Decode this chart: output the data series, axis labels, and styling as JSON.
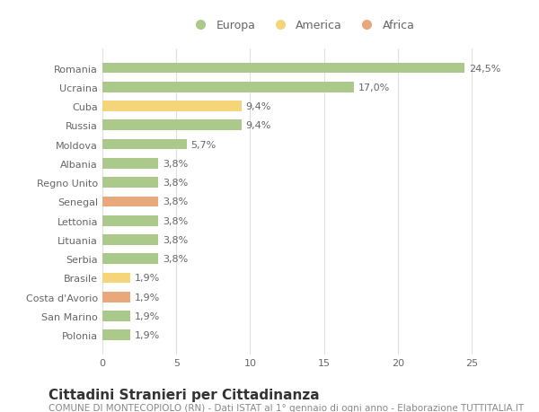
{
  "countries": [
    "Romania",
    "Ucraina",
    "Cuba",
    "Russia",
    "Moldova",
    "Albania",
    "Regno Unito",
    "Senegal",
    "Lettonia",
    "Lituania",
    "Serbia",
    "Brasile",
    "Costa d'Avorio",
    "San Marino",
    "Polonia"
  ],
  "values": [
    24.5,
    17.0,
    9.4,
    9.4,
    5.7,
    3.8,
    3.8,
    3.8,
    3.8,
    3.8,
    3.8,
    1.9,
    1.9,
    1.9,
    1.9
  ],
  "labels": [
    "24,5%",
    "17,0%",
    "9,4%",
    "9,4%",
    "5,7%",
    "3,8%",
    "3,8%",
    "3,8%",
    "3,8%",
    "3,8%",
    "3,8%",
    "1,9%",
    "1,9%",
    "1,9%",
    "1,9%"
  ],
  "continent": [
    "Europa",
    "Europa",
    "America",
    "Europa",
    "Europa",
    "Europa",
    "Europa",
    "Africa",
    "Europa",
    "Europa",
    "Europa",
    "America",
    "Africa",
    "Europa",
    "Europa"
  ],
  "colors": {
    "Europa": "#aac98a",
    "America": "#f5d57a",
    "Africa": "#e8a87c"
  },
  "title": "Cittadini Stranieri per Cittadinanza",
  "subtitle": "COMUNE DI MONTECOPIOLO (RN) - Dati ISTAT al 1° gennaio di ogni anno - Elaborazione TUTTITALIA.IT",
  "xlim": [
    0,
    27
  ],
  "xticks": [
    0,
    5,
    10,
    15,
    20,
    25
  ],
  "background_color": "#ffffff",
  "grid_color": "#e0e0e0",
  "bar_height": 0.55,
  "label_fontsize": 8,
  "tick_fontsize": 8,
  "title_fontsize": 11,
  "subtitle_fontsize": 7.5
}
